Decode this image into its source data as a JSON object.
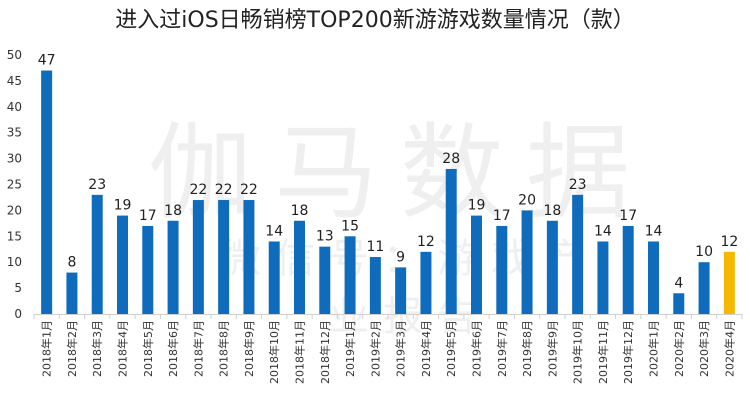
{
  "title": "进入过iOS日畅销榜TOP200新游游戏数量情况（款）",
  "watermark": {
    "main": "伽马数据",
    "sub": "微信号：游戏产业报告"
  },
  "colors": {
    "bar": "#0f6cbd",
    "highlight": "#f5b800",
    "axis": "#d0d0d0"
  },
  "chart_data": {
    "type": "bar",
    "title": "进入过iOS日畅销榜TOP200新游游戏数量情况（款）",
    "xlabel": "",
    "ylabel": "",
    "ylim": [
      0,
      50
    ],
    "yticks": [
      0,
      5,
      10,
      15,
      20,
      25,
      30,
      35,
      40,
      45,
      50
    ],
    "grid": false,
    "categories": [
      "2018年1月",
      "2018年2月",
      "2018年3月",
      "2018年4月",
      "2018年5月",
      "2018年6月",
      "2018年7月",
      "2018年8月",
      "2018年9月",
      "2018年10月",
      "2018年11月",
      "2018年12月",
      "2019年1月",
      "2019年2月",
      "2019年3月",
      "2019年4月",
      "2019年5月",
      "2019年6月",
      "2019年7月",
      "2019年8月",
      "2019年9月",
      "2019年10月",
      "2019年11月",
      "2019年12月",
      "2020年1月",
      "2020年2月",
      "2020年3月",
      "2020年4月"
    ],
    "values": [
      47,
      8,
      23,
      19,
      17,
      18,
      22,
      22,
      22,
      14,
      18,
      13,
      15,
      11,
      9,
      12,
      28,
      19,
      17,
      20,
      18,
      23,
      14,
      17,
      14,
      4,
      10,
      12
    ],
    "highlight_index": 27
  }
}
